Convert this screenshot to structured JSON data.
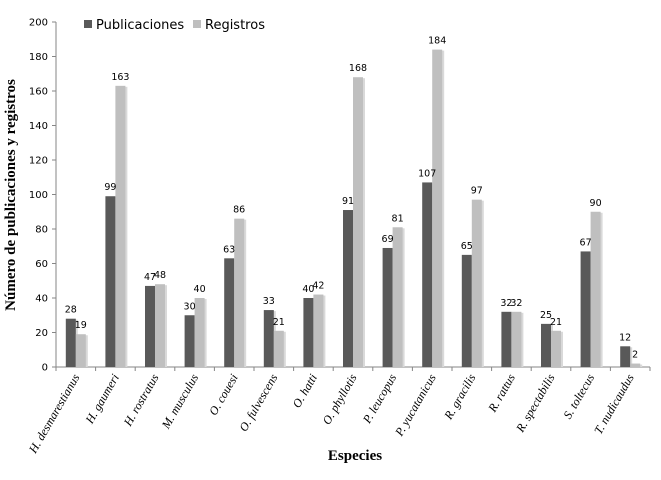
{
  "chart_data": {
    "type": "bar",
    "xlabel": "Especies",
    "ylabel": "Número de publicaciones  y registros",
    "ylim": [
      0,
      200
    ],
    "yticks": [
      0,
      20,
      40,
      60,
      80,
      100,
      120,
      140,
      160,
      180,
      200
    ],
    "grid": false,
    "legend_position": "top-left",
    "categories": [
      "H. desmarestianus",
      "H. gaumeri",
      "H. rostratus",
      "M. musculus",
      "O. couesi",
      "O. fulvescens",
      "O. hatti",
      "O. phyllotis",
      "P. leucopus",
      "P. yucatanicus",
      "R. gracilis",
      "R. rattus",
      "R. spectabilis",
      "S. toltecus",
      "T. nudicaudus"
    ],
    "series": [
      {
        "name": "Publicaciones",
        "color": "#595959",
        "values": [
          28,
          99,
          47,
          30,
          63,
          33,
          40,
          91,
          69,
          107,
          65,
          32,
          25,
          67,
          12
        ]
      },
      {
        "name": "Registros",
        "color": "#bfbfbf",
        "values": [
          19,
          163,
          48,
          40,
          86,
          21,
          42,
          168,
          81,
          184,
          97,
          32,
          21,
          90,
          2
        ]
      }
    ]
  }
}
